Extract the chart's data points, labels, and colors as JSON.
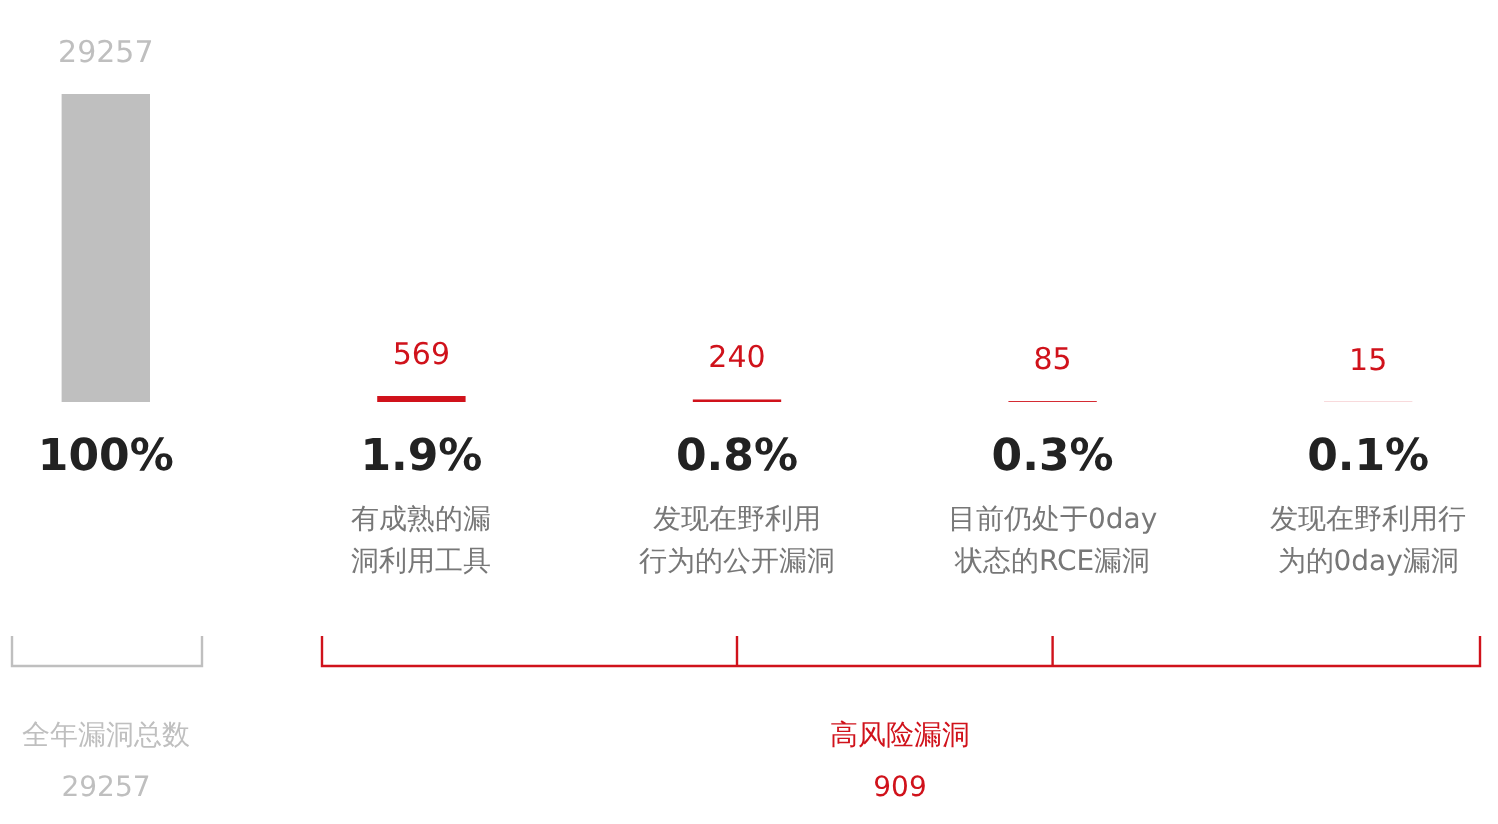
{
  "chart_data": {
    "type": "bar",
    "categories": [
      null,
      "有成熟的漏洞利用工具",
      "发现在野利用行为的公开漏洞",
      "目前仍处于0day状态的RCE漏洞",
      "发现在野利用行为的0day漏洞"
    ],
    "values": [
      29257,
      569,
      240,
      85,
      15
    ],
    "colors": [
      "#bfbfbf",
      "#d0121b",
      "#d0121b",
      "#d0121b",
      "#d0121b"
    ],
    "data_labels": true,
    "annotations": [
      "100%",
      "1.9%",
      "0.8%",
      "0.3%",
      "0.1%",
      "全年漏洞总数",
      "29257",
      "高风险漏洞",
      "909"
    ]
  }
}
